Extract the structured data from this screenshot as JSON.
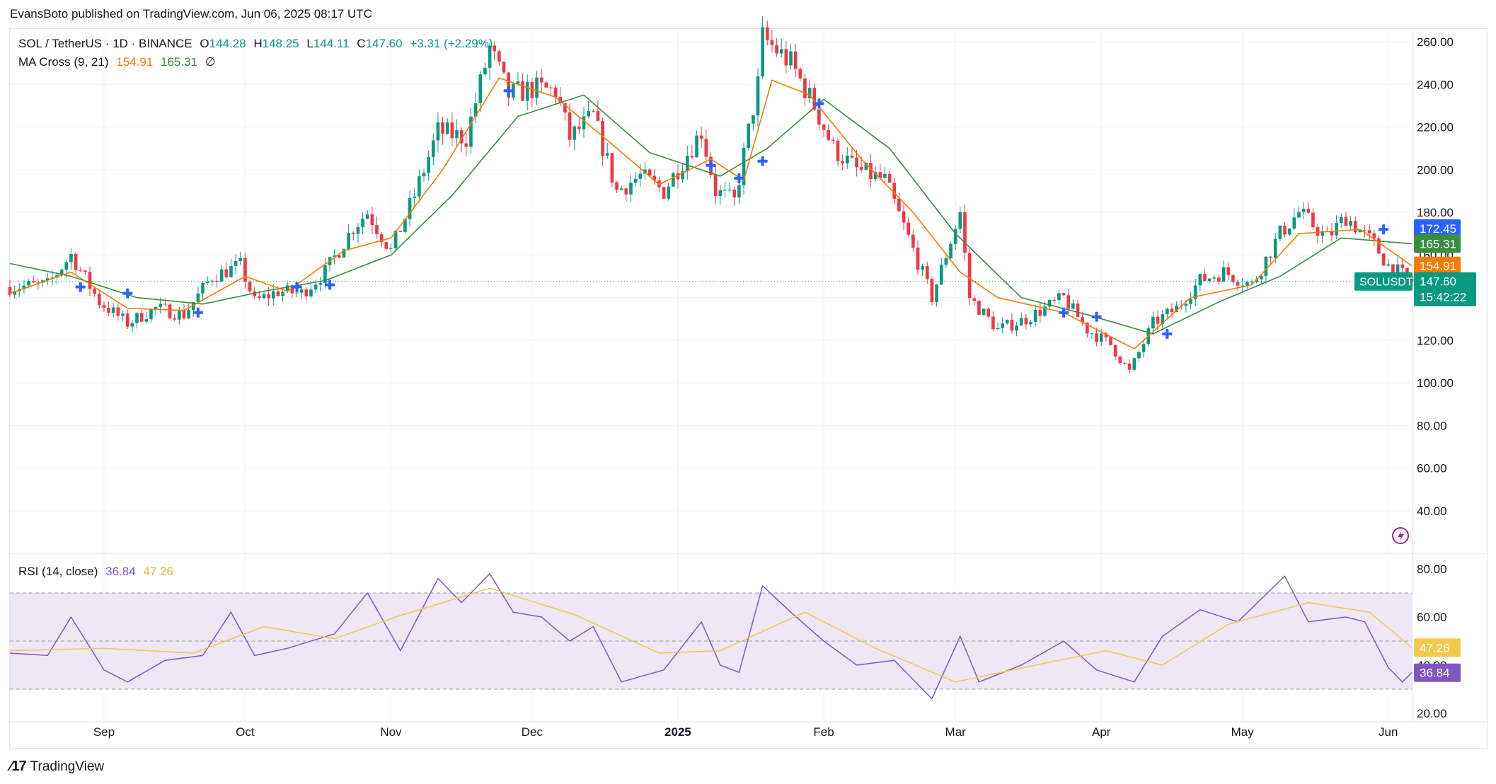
{
  "header": {
    "published": "EvansBoto published on TradingView.com, Jun 06, 2025 08:17 UTC"
  },
  "footer": {
    "brand": "TradingView"
  },
  "legend": {
    "symbol": "SOL / TetherUS · 1D · BINANCE",
    "open_label": "O",
    "open": "144.28",
    "high_label": "H",
    "high": "148.25",
    "low_label": "L",
    "low": "144.11",
    "close_label": "C",
    "close": "147.60",
    "change": "+3.31 (+2.29%)",
    "ma_name": "MA Cross (9, 21)",
    "ma_fast": "154.91",
    "ma_slow": "165.31",
    "ma_extra": "∅",
    "rsi_name": "RSI (14, close)",
    "rsi_value": "36.84",
    "rsi_ma": "47.26"
  },
  "price_badges": {
    "ma_cross_price": "172.45",
    "ma_slow": "165.31",
    "ma_fast": "154.91",
    "symbol": "SOLUSDT",
    "last_price": "147.60",
    "countdown": "15:42:22"
  },
  "rsi_badges": {
    "rsi_ma": "47.26",
    "rsi_value": "36.84"
  },
  "colors": {
    "up": "#089981",
    "down": "#f23645",
    "ma_fast": "#f57c00",
    "ma_slow": "#388e3c",
    "cross": "#2962ff",
    "rsi": "#7e57c2",
    "rsi_ma": "#f2c94c",
    "rsi_band": "#ede7f6",
    "grid": "#f0f3fa",
    "text": "#131722"
  },
  "chart_data": [
    {
      "type": "candlestick",
      "title": "SOL / TetherUS · 1D · BINANCE",
      "y_ticks": [
        "260.00",
        "240.00",
        "220.00",
        "200.00",
        "180.00",
        "160.00",
        "140.00",
        "120.00",
        "100.00",
        "80.00",
        "60.00",
        "40.00"
      ],
      "ylim": [
        25,
        265
      ],
      "x_ticks": [
        {
          "label": "Sep",
          "date": "2024-09-01"
        },
        {
          "label": "Oct",
          "date": "2024-10-01"
        },
        {
          "label": "Nov",
          "date": "2024-11-01"
        },
        {
          "label": "Dec",
          "date": "2024-12-01"
        },
        {
          "label": "2025",
          "date": "2025-01-01"
        },
        {
          "label": "Feb",
          "date": "2025-02-01"
        },
        {
          "label": "Mar",
          "date": "2025-03-01"
        },
        {
          "label": "Apr",
          "date": "2025-04-01"
        },
        {
          "label": "May",
          "date": "2025-05-01"
        },
        {
          "label": "Jun",
          "date": "2025-06-01"
        }
      ],
      "date_range": [
        "2024-08-12",
        "2025-06-06"
      ],
      "close_series": [
        {
          "date": "2024-08-12",
          "close": 145
        },
        {
          "date": "2024-08-20",
          "close": 146
        },
        {
          "date": "2024-08-25",
          "close": 160
        },
        {
          "date": "2024-08-31",
          "close": 138
        },
        {
          "date": "2024-09-06",
          "close": 128
        },
        {
          "date": "2024-09-12",
          "close": 135
        },
        {
          "date": "2024-09-18",
          "close": 132
        },
        {
          "date": "2024-09-24",
          "close": 150
        },
        {
          "date": "2024-09-30",
          "close": 155
        },
        {
          "date": "2024-10-03",
          "close": 138
        },
        {
          "date": "2024-10-08",
          "close": 143
        },
        {
          "date": "2024-10-13",
          "close": 142
        },
        {
          "date": "2024-10-18",
          "close": 152
        },
        {
          "date": "2024-10-24",
          "close": 173
        },
        {
          "date": "2024-10-27",
          "close": 180
        },
        {
          "date": "2024-11-01",
          "close": 162
        },
        {
          "date": "2024-11-06",
          "close": 188
        },
        {
          "date": "2024-11-11",
          "close": 218
        },
        {
          "date": "2024-11-17",
          "close": 215
        },
        {
          "date": "2024-11-22",
          "close": 257
        },
        {
          "date": "2024-11-26",
          "close": 235
        },
        {
          "date": "2024-12-01",
          "close": 238
        },
        {
          "date": "2024-12-06",
          "close": 237
        },
        {
          "date": "2024-12-09",
          "close": 215
        },
        {
          "date": "2024-12-14",
          "close": 225
        },
        {
          "date": "2024-12-19",
          "close": 190
        },
        {
          "date": "2024-12-24",
          "close": 197
        },
        {
          "date": "2024-12-29",
          "close": 190
        },
        {
          "date": "2025-01-06",
          "close": 218
        },
        {
          "date": "2025-01-09",
          "close": 190
        },
        {
          "date": "2025-01-13",
          "close": 185
        },
        {
          "date": "2025-01-18",
          "close": 240
        },
        {
          "date": "2025-01-19",
          "close": 262
        },
        {
          "date": "2025-01-25",
          "close": 250
        },
        {
          "date": "2025-01-30",
          "close": 230
        },
        {
          "date": "2025-02-03",
          "close": 210
        },
        {
          "date": "2025-02-08",
          "close": 200
        },
        {
          "date": "2025-02-14",
          "close": 195
        },
        {
          "date": "2025-02-19",
          "close": 168
        },
        {
          "date": "2025-02-24",
          "close": 140
        },
        {
          "date": "2025-03-02",
          "close": 180
        },
        {
          "date": "2025-03-04",
          "close": 140
        },
        {
          "date": "2025-03-10",
          "close": 125
        },
        {
          "date": "2025-03-16",
          "close": 130
        },
        {
          "date": "2025-03-24",
          "close": 140
        },
        {
          "date": "2025-03-29",
          "close": 125
        },
        {
          "date": "2025-04-03",
          "close": 118
        },
        {
          "date": "2025-04-07",
          "close": 105
        },
        {
          "date": "2025-04-12",
          "close": 128
        },
        {
          "date": "2025-04-17",
          "close": 135
        },
        {
          "date": "2025-04-22",
          "close": 148
        },
        {
          "date": "2025-04-27",
          "close": 152
        },
        {
          "date": "2025-05-03",
          "close": 146
        },
        {
          "date": "2025-05-09",
          "close": 170
        },
        {
          "date": "2025-05-13",
          "close": 180
        },
        {
          "date": "2025-05-19",
          "close": 168
        },
        {
          "date": "2025-05-23",
          "close": 178
        },
        {
          "date": "2025-05-29",
          "close": 165
        },
        {
          "date": "2025-06-01",
          "close": 155
        },
        {
          "date": "2025-06-06",
          "close": 147.6
        }
      ],
      "ma_fast_series": [
        {
          "date": "2024-08-12",
          "v": 142
        },
        {
          "date": "2024-08-25",
          "v": 152
        },
        {
          "date": "2024-09-06",
          "v": 135
        },
        {
          "date": "2024-09-18",
          "v": 134
        },
        {
          "date": "2024-10-01",
          "v": 150
        },
        {
          "date": "2024-10-10",
          "v": 143
        },
        {
          "date": "2024-10-22",
          "v": 162
        },
        {
          "date": "2024-11-01",
          "v": 168
        },
        {
          "date": "2024-11-12",
          "v": 200
        },
        {
          "date": "2024-11-24",
          "v": 243
        },
        {
          "date": "2024-12-06",
          "v": 234
        },
        {
          "date": "2024-12-18",
          "v": 212
        },
        {
          "date": "2024-12-28",
          "v": 193
        },
        {
          "date": "2025-01-08",
          "v": 205
        },
        {
          "date": "2025-01-15",
          "v": 195
        },
        {
          "date": "2025-01-21",
          "v": 242
        },
        {
          "date": "2025-01-29",
          "v": 235
        },
        {
          "date": "2025-02-09",
          "v": 205
        },
        {
          "date": "2025-02-20",
          "v": 180
        },
        {
          "date": "2025-03-02",
          "v": 152
        },
        {
          "date": "2025-03-10",
          "v": 140
        },
        {
          "date": "2025-03-24",
          "v": 133
        },
        {
          "date": "2025-04-08",
          "v": 116
        },
        {
          "date": "2025-04-20",
          "v": 140
        },
        {
          "date": "2025-05-03",
          "v": 146
        },
        {
          "date": "2025-05-13",
          "v": 170
        },
        {
          "date": "2025-05-26",
          "v": 172
        },
        {
          "date": "2025-06-06",
          "v": 154.91
        }
      ],
      "ma_slow_series": [
        {
          "date": "2024-08-12",
          "v": 156
        },
        {
          "date": "2024-08-25",
          "v": 150
        },
        {
          "date": "2024-09-08",
          "v": 140
        },
        {
          "date": "2024-09-22",
          "v": 137
        },
        {
          "date": "2024-10-05",
          "v": 143
        },
        {
          "date": "2024-10-18",
          "v": 148
        },
        {
          "date": "2024-11-01",
          "v": 160
        },
        {
          "date": "2024-11-14",
          "v": 188
        },
        {
          "date": "2024-11-28",
          "v": 225
        },
        {
          "date": "2024-12-12",
          "v": 235
        },
        {
          "date": "2024-12-26",
          "v": 208
        },
        {
          "date": "2025-01-10",
          "v": 197
        },
        {
          "date": "2025-01-20",
          "v": 210
        },
        {
          "date": "2025-02-01",
          "v": 233
        },
        {
          "date": "2025-02-15",
          "v": 210
        },
        {
          "date": "2025-03-01",
          "v": 170
        },
        {
          "date": "2025-03-15",
          "v": 140
        },
        {
          "date": "2025-03-29",
          "v": 132
        },
        {
          "date": "2025-04-12",
          "v": 123
        },
        {
          "date": "2025-04-26",
          "v": 138
        },
        {
          "date": "2025-05-09",
          "v": 150
        },
        {
          "date": "2025-05-22",
          "v": 168
        },
        {
          "date": "2025-06-06",
          "v": 165.31
        }
      ],
      "cross_markers": [
        {
          "date": "2024-08-27",
          "price": 145
        },
        {
          "date": "2024-09-06",
          "price": 142
        },
        {
          "date": "2024-09-21",
          "price": 133
        },
        {
          "date": "2024-10-12",
          "price": 145
        },
        {
          "date": "2024-10-19",
          "price": 146
        },
        {
          "date": "2024-11-26",
          "price": 237
        },
        {
          "date": "2025-01-08",
          "price": 202
        },
        {
          "date": "2025-01-14",
          "price": 196
        },
        {
          "date": "2025-01-19",
          "price": 204
        },
        {
          "date": "2025-01-31",
          "price": 231
        },
        {
          "date": "2025-03-24",
          "price": 133
        },
        {
          "date": "2025-03-31",
          "price": 131
        },
        {
          "date": "2025-04-15",
          "price": 123
        },
        {
          "date": "2025-05-31",
          "price": 172
        }
      ],
      "last_price": 147.6
    },
    {
      "type": "line",
      "title": "RSI (14, close)",
      "y_ticks": [
        "80.00",
        "60.00",
        "40.00",
        "20.00"
      ],
      "ylim": [
        19,
        82
      ],
      "bands": [
        70,
        50,
        30
      ],
      "series": [
        {
          "name": "RSI",
          "values": [
            {
              "date": "2024-08-12",
              "v": 45
            },
            {
              "date": "2024-08-20",
              "v": 44
            },
            {
              "date": "2024-08-25",
              "v": 60
            },
            {
              "date": "2024-09-01",
              "v": 38
            },
            {
              "date": "2024-09-06",
              "v": 33
            },
            {
              "date": "2024-09-14",
              "v": 42
            },
            {
              "date": "2024-09-22",
              "v": 44
            },
            {
              "date": "2024-09-28",
              "v": 62
            },
            {
              "date": "2024-10-03",
              "v": 44
            },
            {
              "date": "2024-10-10",
              "v": 47
            },
            {
              "date": "2024-10-20",
              "v": 53
            },
            {
              "date": "2024-10-27",
              "v": 70
            },
            {
              "date": "2024-11-03",
              "v": 46
            },
            {
              "date": "2024-11-11",
              "v": 76
            },
            {
              "date": "2024-11-16",
              "v": 66
            },
            {
              "date": "2024-11-22",
              "v": 78
            },
            {
              "date": "2024-11-27",
              "v": 62
            },
            {
              "date": "2024-12-03",
              "v": 60
            },
            {
              "date": "2024-12-09",
              "v": 50
            },
            {
              "date": "2024-12-14",
              "v": 56
            },
            {
              "date": "2024-12-20",
              "v": 33
            },
            {
              "date": "2024-12-29",
              "v": 38
            },
            {
              "date": "2025-01-06",
              "v": 58
            },
            {
              "date": "2025-01-10",
              "v": 40
            },
            {
              "date": "2025-01-14",
              "v": 37
            },
            {
              "date": "2025-01-19",
              "v": 73
            },
            {
              "date": "2025-01-25",
              "v": 62
            },
            {
              "date": "2025-02-01",
              "v": 50
            },
            {
              "date": "2025-02-08",
              "v": 40
            },
            {
              "date": "2025-02-16",
              "v": 42
            },
            {
              "date": "2025-02-24",
              "v": 26
            },
            {
              "date": "2025-03-02",
              "v": 52
            },
            {
              "date": "2025-03-06",
              "v": 33
            },
            {
              "date": "2025-03-15",
              "v": 40
            },
            {
              "date": "2025-03-24",
              "v": 50
            },
            {
              "date": "2025-03-31",
              "v": 38
            },
            {
              "date": "2025-04-08",
              "v": 33
            },
            {
              "date": "2025-04-14",
              "v": 52
            },
            {
              "date": "2025-04-22",
              "v": 63
            },
            {
              "date": "2025-04-30",
              "v": 58
            },
            {
              "date": "2025-05-10",
              "v": 77
            },
            {
              "date": "2025-05-15",
              "v": 58
            },
            {
              "date": "2025-05-23",
              "v": 60
            },
            {
              "date": "2025-05-27",
              "v": 58
            },
            {
              "date": "2025-06-01",
              "v": 39
            },
            {
              "date": "2025-06-04",
              "v": 33
            },
            {
              "date": "2025-06-06",
              "v": 36.84
            }
          ]
        },
        {
          "name": "RSI MA",
          "values": [
            {
              "date": "2024-08-12",
              "v": 46
            },
            {
              "date": "2024-09-01",
              "v": 47
            },
            {
              "date": "2024-09-20",
              "v": 45
            },
            {
              "date": "2024-10-05",
              "v": 56
            },
            {
              "date": "2024-10-20",
              "v": 51
            },
            {
              "date": "2024-11-02",
              "v": 60
            },
            {
              "date": "2024-11-22",
              "v": 72
            },
            {
              "date": "2024-12-10",
              "v": 61
            },
            {
              "date": "2024-12-28",
              "v": 45
            },
            {
              "date": "2025-01-10",
              "v": 46
            },
            {
              "date": "2025-01-28",
              "v": 62
            },
            {
              "date": "2025-02-12",
              "v": 47
            },
            {
              "date": "2025-03-01",
              "v": 33
            },
            {
              "date": "2025-03-18",
              "v": 40
            },
            {
              "date": "2025-04-02",
              "v": 46
            },
            {
              "date": "2025-04-14",
              "v": 40
            },
            {
              "date": "2025-04-28",
              "v": 57
            },
            {
              "date": "2025-05-15",
              "v": 66
            },
            {
              "date": "2025-05-28",
              "v": 62
            },
            {
              "date": "2025-06-06",
              "v": 47.26
            }
          ]
        }
      ]
    }
  ]
}
